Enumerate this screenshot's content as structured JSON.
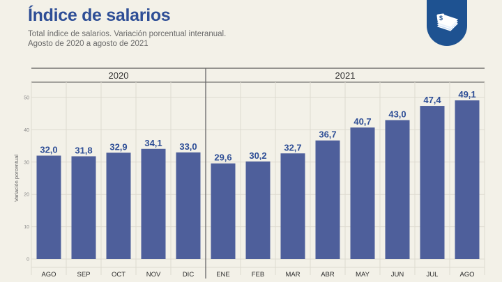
{
  "header": {
    "title": "Índice de salarios",
    "subtitle_line1": "Total índice de salarios. Variación porcentual interanual.",
    "subtitle_line2": "Agosto de 2020 a agosto de 2021"
  },
  "badge": {
    "icon": "money-stack-icon",
    "color": "#1e5291"
  },
  "colors": {
    "bar": "#4e5f9b",
    "label": "#2e4e96",
    "background": "#f3f1e8"
  },
  "chart_data": {
    "type": "bar",
    "title": "Índice de salarios",
    "ylabel": "Variación porcentual",
    "xlabel": "",
    "ylim": [
      0,
      50
    ],
    "yticks": [
      0,
      10,
      20,
      30,
      40,
      50
    ],
    "grid": true,
    "groups": [
      {
        "label": "2020",
        "count": 5
      },
      {
        "label": "2021",
        "count": 8
      }
    ],
    "categories": [
      "AGO",
      "SEP",
      "OCT",
      "NOV",
      "DIC",
      "ENE",
      "FEB",
      "MAR",
      "ABR",
      "MAY",
      "JUN",
      "JUL",
      "AGO"
    ],
    "values": [
      32.0,
      31.8,
      32.9,
      34.1,
      33.0,
      29.6,
      30.2,
      32.7,
      36.7,
      40.7,
      43.0,
      47.4,
      49.1
    ],
    "value_labels": [
      "32,0",
      "31,8",
      "32,9",
      "34,1",
      "33,0",
      "29,6",
      "30,2",
      "32,7",
      "36,7",
      "40,7",
      "43,0",
      "47,4",
      "49,1"
    ]
  }
}
